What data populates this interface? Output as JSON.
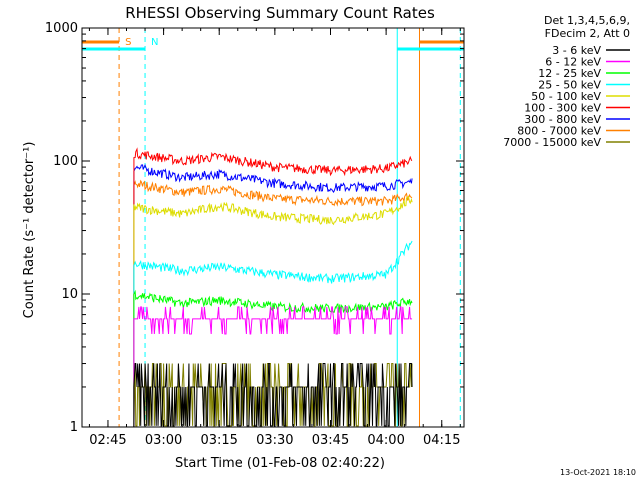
{
  "chart_data": {
    "type": "line",
    "title": "RHESSI Observing Summary Count Rates",
    "xlabel": "Start Time (01-Feb-08 02:40:22)",
    "ylabel": "Count Rate (s⁻¹ detector⁻¹)",
    "yscale": "log",
    "ylim": [
      1,
      1000
    ],
    "xlim": [
      "02:38",
      "04:21"
    ],
    "x_ticks": [
      "02:45",
      "03:00",
      "03:15",
      "03:30",
      "03:45",
      "04:00",
      "04:15"
    ],
    "y_ticks": [
      "1",
      "10",
      "100",
      "1000"
    ],
    "grid": false,
    "legend_position": "top-right",
    "legend_header": [
      "Det 1,3,4,5,6,9,",
      "FDecim 2, Att 0"
    ],
    "series": [
      {
        "name": "3 - 6 keV",
        "color": "#000000",
        "times": [
          "02:52",
          "04:07"
        ],
        "values": [
          2,
          2
        ]
      },
      {
        "name": "6 - 12 keV",
        "color": "#ff00ff",
        "times": [
          "02:52",
          "03:15",
          "03:40",
          "04:07"
        ],
        "values": [
          6.5,
          6.5,
          6.3,
          6.5
        ]
      },
      {
        "name": "12 - 25 keV",
        "color": "#00ff00",
        "times": [
          "02:52",
          "03:05",
          "03:15",
          "03:30",
          "03:45",
          "04:00",
          "04:07"
        ],
        "values": [
          10,
          8.5,
          9,
          8,
          7.8,
          8,
          9
        ]
      },
      {
        "name": "25 - 50 keV",
        "color": "#00ffff",
        "times": [
          "02:52",
          "03:05",
          "03:15",
          "03:30",
          "03:45",
          "04:00",
          "04:07"
        ],
        "values": [
          17,
          15,
          16,
          14,
          13,
          14,
          25
        ]
      },
      {
        "name": "50 - 100 keV",
        "color": "#dddd00",
        "times": [
          "02:52",
          "03:05",
          "03:15",
          "03:30",
          "03:45",
          "04:00",
          "04:07"
        ],
        "values": [
          45,
          40,
          46,
          38,
          36,
          40,
          52
        ]
      },
      {
        "name": "100 - 300 keV",
        "color": "#ff0000",
        "times": [
          "02:52",
          "03:05",
          "03:15",
          "03:30",
          "03:45",
          "04:00",
          "04:07"
        ],
        "values": [
          115,
          100,
          108,
          90,
          85,
          88,
          100
        ]
      },
      {
        "name": "300 - 800 keV",
        "color": "#0000ff",
        "times": [
          "02:52",
          "03:05",
          "03:15",
          "03:30",
          "03:45",
          "04:00",
          "04:07"
        ],
        "values": [
          90,
          75,
          80,
          68,
          63,
          65,
          70
        ]
      },
      {
        "name": "800 - 7000 keV",
        "color": "#ff8000",
        "times": [
          "02:52",
          "03:05",
          "03:15",
          "03:30",
          "03:45",
          "04:00",
          "04:07"
        ],
        "values": [
          68,
          58,
          62,
          52,
          50,
          50,
          55
        ]
      },
      {
        "name": "7000 - 15000 keV",
        "color": "#808000",
        "times": [
          "02:52",
          "04:07"
        ],
        "values": [
          2.5,
          2.5
        ]
      }
    ],
    "annotations": [
      {
        "label": "S",
        "color": "#ff8000",
        "time": "02:48"
      },
      {
        "label": "N",
        "color": "#00ffff",
        "time": "02:55"
      }
    ],
    "markers": [
      {
        "kind": "cyan-solid",
        "color": "#00ffff",
        "time": "02:38"
      },
      {
        "kind": "orange-dashed",
        "color": "#ff8000",
        "time": "02:48"
      },
      {
        "kind": "cyan-dashed",
        "color": "#00ffff",
        "time": "02:55"
      },
      {
        "kind": "cyan-solid",
        "color": "#00ffff",
        "time": "04:03"
      },
      {
        "kind": "orange-solid",
        "color": "#ff8000",
        "time": "04:09"
      },
      {
        "kind": "cyan-dashed",
        "color": "#00ffff",
        "time": "04:20"
      }
    ],
    "footer_date": "13-Oct-2021 18:10"
  }
}
